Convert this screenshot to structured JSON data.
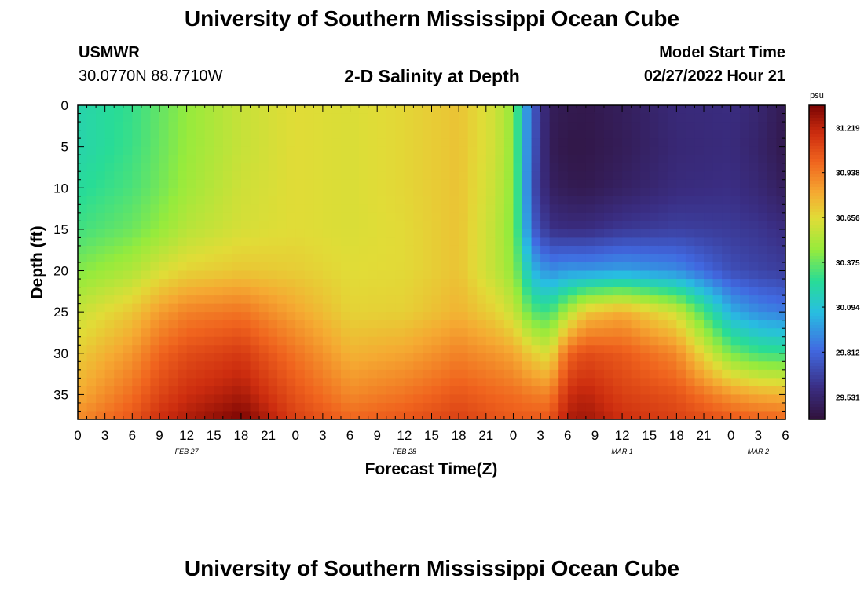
{
  "header": {
    "title": "University of Southern Mississippi Ocean Cube",
    "station_name": "USMWR",
    "station_coords": "30.0770N  88.7710W",
    "subtitle": "2-D Salinity at Depth",
    "model_start_label": "Model Start Time",
    "model_start_value": "02/27/2022 Hour 21"
  },
  "footer": {
    "title": "University of Southern Mississippi Ocean Cube"
  },
  "chart_data": {
    "type": "heatmap",
    "title": "2-D Salinity at Depth",
    "xlabel": "Forecast Time(Z)",
    "ylabel": "Depth (ft)",
    "x_range_hours": [
      0,
      78
    ],
    "y_range_ft": [
      0,
      38
    ],
    "y_inverted": true,
    "x_tick_labels": [
      "0",
      "3",
      "6",
      "9",
      "12",
      "15",
      "18",
      "21",
      "0",
      "3",
      "6",
      "9",
      "12",
      "15",
      "18",
      "21",
      "0",
      "3",
      "6",
      "9",
      "12",
      "15",
      "18",
      "21",
      "0",
      "3",
      "6"
    ],
    "y_tick_labels": [
      "0",
      "5",
      "10",
      "15",
      "20",
      "25",
      "30",
      "35"
    ],
    "y_tick_values": [
      0,
      5,
      10,
      15,
      20,
      25,
      30,
      35
    ],
    "date_labels": [
      {
        "text": "FEB 27",
        "hour": 12
      },
      {
        "text": "FEB 28",
        "hour": 36
      },
      {
        "text": "MAR 1",
        "hour": 60
      },
      {
        "text": "MAR 2",
        "hour": 75
      }
    ],
    "colorbar": {
      "unit": "psu",
      "min": 29.39,
      "max": 31.36,
      "tick_labels": [
        "31.219",
        "30.938",
        "30.656",
        "30.375",
        "30.094",
        "29.812",
        "29.531"
      ],
      "tick_values": [
        31.219,
        30.938,
        30.656,
        30.375,
        30.094,
        29.812,
        29.531
      ]
    },
    "salinity_profiles": {
      "depth_ft": [
        0,
        5,
        10,
        15,
        20,
        25,
        30,
        35,
        38
      ],
      "times_hours": [
        0,
        6,
        9,
        12,
        18,
        24,
        30,
        36,
        42,
        46,
        48,
        49,
        50,
        52,
        54,
        56,
        60,
        66,
        72,
        75,
        78
      ],
      "values_psu": [
        [
          30.2,
          30.2,
          30.24,
          30.3,
          30.42,
          30.58,
          30.7,
          30.8,
          30.9
        ],
        [
          30.28,
          30.29,
          30.32,
          30.38,
          30.52,
          30.72,
          30.86,
          30.98,
          31.05
        ],
        [
          30.36,
          30.37,
          30.39,
          30.45,
          30.62,
          30.84,
          31.0,
          31.1,
          31.18
        ],
        [
          30.45,
          30.46,
          30.48,
          30.54,
          30.68,
          30.92,
          31.08,
          31.18,
          31.25
        ],
        [
          30.58,
          30.58,
          30.6,
          30.62,
          30.72,
          30.96,
          31.14,
          31.26,
          31.36
        ],
        [
          30.65,
          30.65,
          30.65,
          30.65,
          30.7,
          30.82,
          30.96,
          31.06,
          31.12
        ],
        [
          30.63,
          30.63,
          30.63,
          30.63,
          30.65,
          30.68,
          30.78,
          30.9,
          31.0
        ],
        [
          30.67,
          30.67,
          30.67,
          30.66,
          30.66,
          30.69,
          30.82,
          30.96,
          31.05
        ],
        [
          30.73,
          30.73,
          30.73,
          30.73,
          30.73,
          30.78,
          30.92,
          31.05,
          31.12
        ],
        [
          30.6,
          30.6,
          30.58,
          30.56,
          30.56,
          30.68,
          30.86,
          31.0,
          31.06
        ],
        [
          30.45,
          30.45,
          30.44,
          30.42,
          30.45,
          30.58,
          30.82,
          30.98,
          31.04
        ],
        [
          30.1,
          30.1,
          30.12,
          30.15,
          30.28,
          30.48,
          30.76,
          30.96,
          31.04
        ],
        [
          29.8,
          29.78,
          29.74,
          29.8,
          30.05,
          30.34,
          30.7,
          30.94,
          31.04
        ],
        [
          29.48,
          29.47,
          29.5,
          29.6,
          29.92,
          30.3,
          30.62,
          30.92,
          31.05
        ],
        [
          29.45,
          29.43,
          29.46,
          29.58,
          29.96,
          30.52,
          31.0,
          31.18,
          31.25
        ],
        [
          29.44,
          29.43,
          29.45,
          29.58,
          29.95,
          30.72,
          31.08,
          31.22,
          31.28
        ],
        [
          29.48,
          29.47,
          29.5,
          29.63,
          29.98,
          30.8,
          31.04,
          31.12,
          31.18
        ],
        [
          29.56,
          29.55,
          29.57,
          29.66,
          29.92,
          30.6,
          30.9,
          31.06,
          31.12
        ],
        [
          29.58,
          29.57,
          29.59,
          29.64,
          29.72,
          30.02,
          30.4,
          30.86,
          31.05
        ],
        [
          29.54,
          29.52,
          29.55,
          29.62,
          29.68,
          29.92,
          30.3,
          30.8,
          31.02
        ],
        [
          29.45,
          29.44,
          29.48,
          29.58,
          29.65,
          29.88,
          30.28,
          30.78,
          31.0
        ]
      ]
    }
  }
}
